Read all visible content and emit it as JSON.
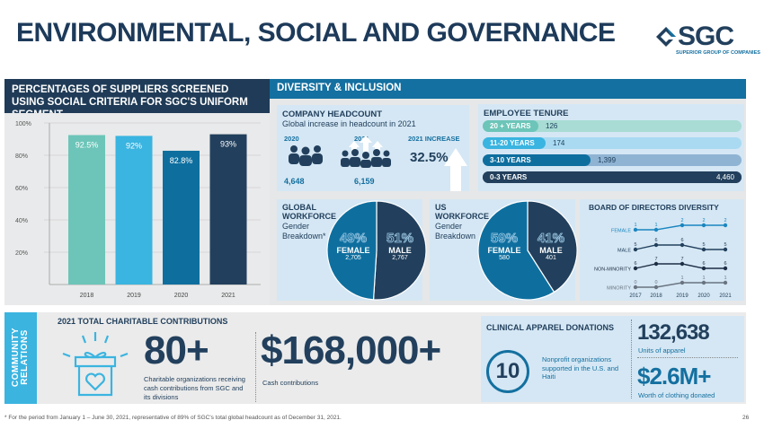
{
  "title": "ENVIRONMENTAL, SOCIAL AND GOVERNANCE",
  "logo": {
    "text": "SGC",
    "subtitle": "SUPERIOR GROUP OF COMPANIES"
  },
  "colors": {
    "navy": "#22405d",
    "blue": "#1470a0",
    "cyan": "#3ab4e0",
    "teal": "#6cc5b8",
    "light_blue_panel": "#d5e7f4"
  },
  "suppliers": {
    "heading": "PERCENTAGES OF SUPPLIERS SCREENED USING SOCIAL CRITERIA FOR SGC'S UNIFORM SEGMENT"
  },
  "diversity": {
    "heading": "DIVERSITY & INCLUSION",
    "headcount": {
      "title": "COMPANY HEADCOUNT",
      "subtitle": "Global increase in headcount in 2021",
      "year1": "2020",
      "year2": "2021",
      "increase_label": "2021 INCREASE",
      "value1": "4,648",
      "value2": "6,159",
      "increase": "32.5%",
      "icons": [
        "people-group-icon",
        "people-group-growth-icon",
        "up-arrow-icon"
      ]
    },
    "tenure": {
      "title": "EMPLOYEE TENURE"
    },
    "global": {
      "title1": "GLOBAL",
      "title2": "WORKFORCE",
      "sub1": "Gender",
      "sub2": "Breakdown*"
    },
    "us": {
      "title1": "US",
      "title2": "WORKFORCE",
      "sub1": "Gender",
      "sub2": "Breakdown"
    },
    "board": {
      "title": "BOARD OF DIRECTORS DIVERSITY"
    }
  },
  "chart_data": [
    {
      "type": "bar",
      "categories": [
        "2018",
        "2019",
        "2020",
        "2021"
      ],
      "values": [
        92.5,
        92,
        82.8,
        93
      ],
      "data_labels": [
        "92.5%",
        "92%",
        "82.8%",
        "93%"
      ],
      "ylim": [
        0,
        100
      ],
      "yticks": [
        "20%",
        "40%",
        "60%",
        "80%",
        "100%"
      ],
      "grid": true,
      "colors": [
        "#6cc5b8",
        "#3ab4e0",
        "#0e6f9f",
        "#22405d"
      ]
    },
    {
      "type": "bar",
      "orientation": "horizontal",
      "categories": [
        "20 + YEARS",
        "11-20 YEARS",
        "3-10 YEARS",
        "0-3 YEARS"
      ],
      "values": [
        126,
        174,
        1399,
        4460
      ],
      "data_labels": [
        "126",
        "174",
        "1,399",
        "4,460"
      ]
    },
    {
      "type": "pie",
      "slices": [
        {
          "label": "FEMALE",
          "percent": "49%",
          "count": "2,705",
          "value": 49
        },
        {
          "label": "MALE",
          "percent": "51%",
          "count": "2,767",
          "value": 51
        }
      ]
    },
    {
      "type": "pie",
      "slices": [
        {
          "label": "FEMALE",
          "percent": "59%",
          "count": "580",
          "value": 59
        },
        {
          "label": "MALE",
          "percent": "41%",
          "count": "401",
          "value": 41
        }
      ]
    },
    {
      "type": "line",
      "x": [
        "2017",
        "2018",
        "2019",
        "2020",
        "2021"
      ],
      "series": [
        {
          "name": "FEMALE",
          "values": [
            1,
            1,
            2,
            2,
            2
          ],
          "color": "#1a86c0"
        },
        {
          "name": "MALE",
          "values": [
            5,
            6,
            6,
            5,
            5
          ],
          "color": "#22405d"
        },
        {
          "name": "NON-MINORITY",
          "values": [
            6,
            7,
            7,
            6,
            6
          ],
          "color": "#1d2f45"
        },
        {
          "name": "MINORITY",
          "values": [
            0,
            0,
            1,
            1,
            1
          ],
          "color": "#6a7480"
        }
      ]
    }
  ],
  "community": {
    "tab": "COMMUNITY RELATIONS",
    "heading": "2021 TOTAL CHARITABLE CONTRIBUTIONS",
    "orgs_value": "80+",
    "orgs_text": "Charitable organizations receiving cash contributions from SGC and its divisions",
    "cash_value": "$168,000+",
    "cash_text": "Cash contributions",
    "clinical_heading": "CLINICAL APPAREL DONATIONS",
    "nonprofit_value": "10",
    "nonprofit_text": "Nonprofit organizations supported in the U.S. and Haiti",
    "units_value": "132,638",
    "units_text": "Units of apparel",
    "worth_value": "$2.6M+",
    "worth_text": "Worth of clothing donated",
    "gift_icon": "gift-heart-icon"
  },
  "footnote": "* For the period from January 1 – June 30, 2021, representative of 89% of SGC's total global headcount as of December 31, 2021.",
  "page_number": "26"
}
